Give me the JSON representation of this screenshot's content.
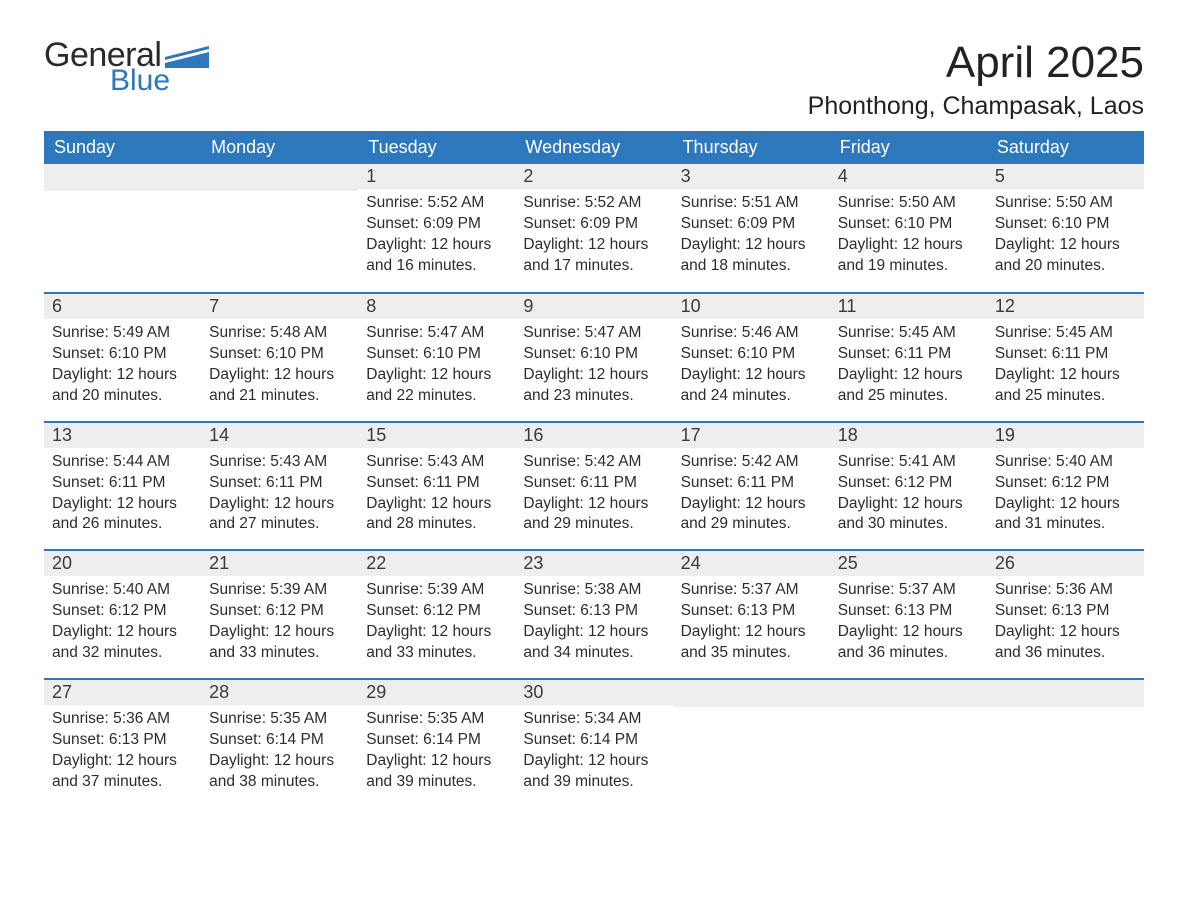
{
  "logo": {
    "general": "General",
    "blue": "Blue",
    "flag_color": "#2d77bd"
  },
  "title": {
    "month": "April 2025",
    "location": "Phonthong, Champasak, Laos"
  },
  "colors": {
    "header_bg": "#2d77bd",
    "header_text": "#ffffff",
    "daynum_bg": "#eeeeee",
    "week_border": "#2d77bd",
    "body_text": "#2c2c2c",
    "page_bg": "#ffffff"
  },
  "day_headers": [
    "Sunday",
    "Monday",
    "Tuesday",
    "Wednesday",
    "Thursday",
    "Friday",
    "Saturday"
  ],
  "weeks": [
    [
      null,
      null,
      {
        "n": "1",
        "sunrise": "5:52 AM",
        "sunset": "6:09 PM",
        "daylight": "12 hours and 16 minutes."
      },
      {
        "n": "2",
        "sunrise": "5:52 AM",
        "sunset": "6:09 PM",
        "daylight": "12 hours and 17 minutes."
      },
      {
        "n": "3",
        "sunrise": "5:51 AM",
        "sunset": "6:09 PM",
        "daylight": "12 hours and 18 minutes."
      },
      {
        "n": "4",
        "sunrise": "5:50 AM",
        "sunset": "6:10 PM",
        "daylight": "12 hours and 19 minutes."
      },
      {
        "n": "5",
        "sunrise": "5:50 AM",
        "sunset": "6:10 PM",
        "daylight": "12 hours and 20 minutes."
      }
    ],
    [
      {
        "n": "6",
        "sunrise": "5:49 AM",
        "sunset": "6:10 PM",
        "daylight": "12 hours and 20 minutes."
      },
      {
        "n": "7",
        "sunrise": "5:48 AM",
        "sunset": "6:10 PM",
        "daylight": "12 hours and 21 minutes."
      },
      {
        "n": "8",
        "sunrise": "5:47 AM",
        "sunset": "6:10 PM",
        "daylight": "12 hours and 22 minutes."
      },
      {
        "n": "9",
        "sunrise": "5:47 AM",
        "sunset": "6:10 PM",
        "daylight": "12 hours and 23 minutes."
      },
      {
        "n": "10",
        "sunrise": "5:46 AM",
        "sunset": "6:10 PM",
        "daylight": "12 hours and 24 minutes."
      },
      {
        "n": "11",
        "sunrise": "5:45 AM",
        "sunset": "6:11 PM",
        "daylight": "12 hours and 25 minutes."
      },
      {
        "n": "12",
        "sunrise": "5:45 AM",
        "sunset": "6:11 PM",
        "daylight": "12 hours and 25 minutes."
      }
    ],
    [
      {
        "n": "13",
        "sunrise": "5:44 AM",
        "sunset": "6:11 PM",
        "daylight": "12 hours and 26 minutes."
      },
      {
        "n": "14",
        "sunrise": "5:43 AM",
        "sunset": "6:11 PM",
        "daylight": "12 hours and 27 minutes."
      },
      {
        "n": "15",
        "sunrise": "5:43 AM",
        "sunset": "6:11 PM",
        "daylight": "12 hours and 28 minutes."
      },
      {
        "n": "16",
        "sunrise": "5:42 AM",
        "sunset": "6:11 PM",
        "daylight": "12 hours and 29 minutes."
      },
      {
        "n": "17",
        "sunrise": "5:42 AM",
        "sunset": "6:11 PM",
        "daylight": "12 hours and 29 minutes."
      },
      {
        "n": "18",
        "sunrise": "5:41 AM",
        "sunset": "6:12 PM",
        "daylight": "12 hours and 30 minutes."
      },
      {
        "n": "19",
        "sunrise": "5:40 AM",
        "sunset": "6:12 PM",
        "daylight": "12 hours and 31 minutes."
      }
    ],
    [
      {
        "n": "20",
        "sunrise": "5:40 AM",
        "sunset": "6:12 PM",
        "daylight": "12 hours and 32 minutes."
      },
      {
        "n": "21",
        "sunrise": "5:39 AM",
        "sunset": "6:12 PM",
        "daylight": "12 hours and 33 minutes."
      },
      {
        "n": "22",
        "sunrise": "5:39 AM",
        "sunset": "6:12 PM",
        "daylight": "12 hours and 33 minutes."
      },
      {
        "n": "23",
        "sunrise": "5:38 AM",
        "sunset": "6:13 PM",
        "daylight": "12 hours and 34 minutes."
      },
      {
        "n": "24",
        "sunrise": "5:37 AM",
        "sunset": "6:13 PM",
        "daylight": "12 hours and 35 minutes."
      },
      {
        "n": "25",
        "sunrise": "5:37 AM",
        "sunset": "6:13 PM",
        "daylight": "12 hours and 36 minutes."
      },
      {
        "n": "26",
        "sunrise": "5:36 AM",
        "sunset": "6:13 PM",
        "daylight": "12 hours and 36 minutes."
      }
    ],
    [
      {
        "n": "27",
        "sunrise": "5:36 AM",
        "sunset": "6:13 PM",
        "daylight": "12 hours and 37 minutes."
      },
      {
        "n": "28",
        "sunrise": "5:35 AM",
        "sunset": "6:14 PM",
        "daylight": "12 hours and 38 minutes."
      },
      {
        "n": "29",
        "sunrise": "5:35 AM",
        "sunset": "6:14 PM",
        "daylight": "12 hours and 39 minutes."
      },
      {
        "n": "30",
        "sunrise": "5:34 AM",
        "sunset": "6:14 PM",
        "daylight": "12 hours and 39 minutes."
      },
      null,
      null,
      null
    ]
  ],
  "labels": {
    "sunrise": "Sunrise: ",
    "sunset": "Sunset: ",
    "daylight": "Daylight: "
  }
}
